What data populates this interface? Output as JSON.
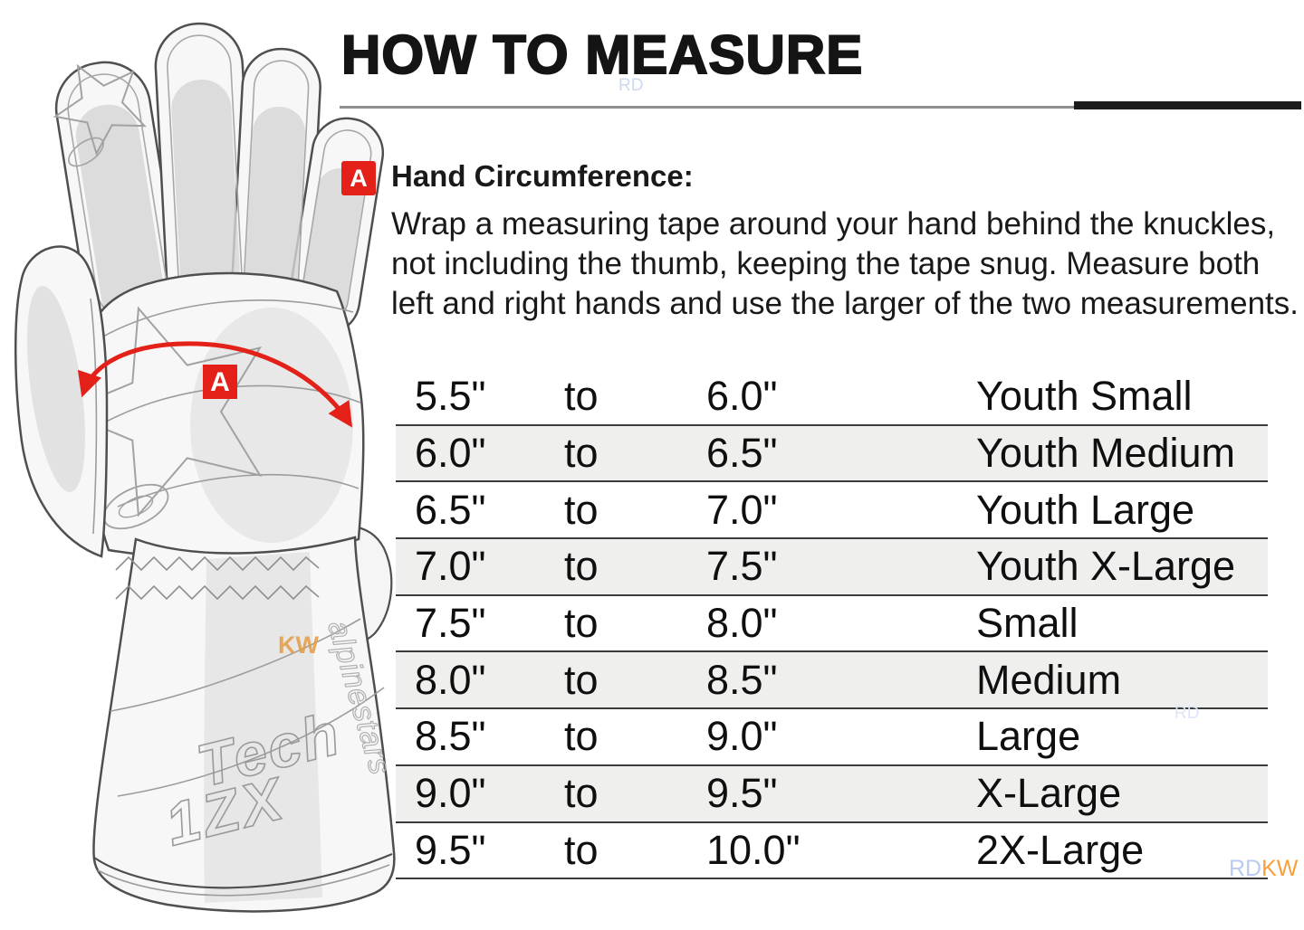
{
  "header": {
    "title": "HOW TO MEASURE"
  },
  "section_a": {
    "marker": "A",
    "heading": "Hand Circumference:",
    "body_lines": [
      "Wrap a measuring tape around your hand behind the knuckles,",
      "not including the thumb, keeping the tape snug. Measure both",
      "left and right hands and use the larger of the two measurements."
    ]
  },
  "size_chart": {
    "columns": [
      "min_circumference",
      "separator",
      "max_circumference",
      "size_name"
    ],
    "rows": [
      [
        "5.5\"",
        "to",
        "6.0\"",
        "Youth Small"
      ],
      [
        "6.0\"",
        "to",
        "6.5\"",
        "Youth Medium"
      ],
      [
        "6.5\"",
        "to",
        "7.0\"",
        "Youth Large"
      ],
      [
        "7.0\"",
        "to",
        "7.5\"",
        "Youth X-Large"
      ],
      [
        "7.5\"",
        "to",
        "8.0\"",
        "Small"
      ],
      [
        "8.0\"",
        "to",
        "8.5\"",
        "Medium"
      ],
      [
        "8.5\"",
        "to",
        "9.0\"",
        "Large"
      ],
      [
        "9.0\"",
        "to",
        "9.5\"",
        "X-Large"
      ],
      [
        "9.5\"",
        "to",
        "10.0\"",
        "2X-Large"
      ]
    ]
  },
  "glove": {
    "marker": "A",
    "brand_line1": "Tech",
    "brand_line2": "1ZX",
    "side_text": "alpinestars"
  },
  "watermarks": {
    "title_rd": "RD",
    "table_rd": "RD",
    "glove_kw": "KW",
    "footer_rd": "RD",
    "footer_kw": "KW"
  },
  "colors": {
    "accent_red": "#e32119",
    "row_stripe": "#efefee",
    "divider": "#3a3a3a"
  }
}
